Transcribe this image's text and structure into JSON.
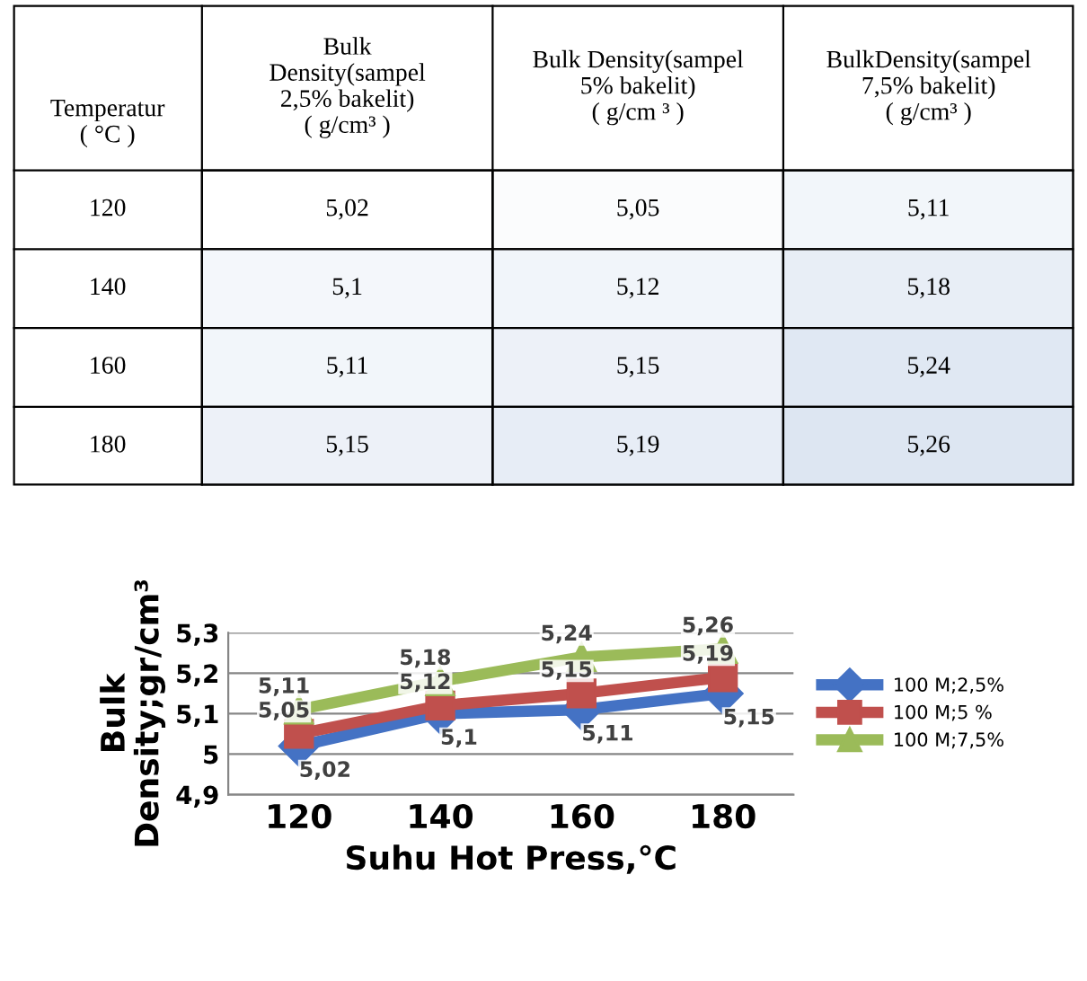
{
  "chart_data": [
    {
      "type": "heatmap",
      "ylabel": "Temperatur\n( °C )",
      "categories": [
        "Bulk\nDensity(sampel\n2,5% bakelit)\n( g/cm³ )",
        "Bulk Density(sampel\n5% bakelit)\n( g/cm ³ )",
        "BulkDensity(sampel\n7,5% bakelit)\n( g/cm³ )"
      ],
      "y_categories": [
        "120",
        "140",
        "160",
        "180"
      ],
      "cells": [
        [
          5.02,
          5.05,
          5.11
        ],
        [
          5.1,
          5.12,
          5.18
        ],
        [
          5.11,
          5.15,
          5.24
        ],
        [
          5.15,
          5.19,
          5.26
        ]
      ],
      "cell_labels": [
        [
          "5,02",
          "5,05",
          "5,11"
        ],
        [
          "5,1",
          "5,12",
          "5,18"
        ],
        [
          "5,11",
          "5,15",
          "5,24"
        ],
        [
          "5,15",
          "5,19",
          "5,26"
        ]
      ]
    },
    {
      "type": "line",
      "xlabel": "Suhu Hot Press,°C",
      "ylabel": "Bulk\nDensity;gr/cm³",
      "categories": [
        "120",
        "140",
        "160",
        "180"
      ],
      "ylim": [
        4.9,
        5.3
      ],
      "yticks": [
        {
          "value": 4.9,
          "label": "4,9"
        },
        {
          "value": 5,
          "label": "5"
        },
        {
          "value": 5.1,
          "label": "5,1"
        },
        {
          "value": 5.2,
          "label": "5,2"
        },
        {
          "value": 5.3,
          "label": "5,3"
        }
      ],
      "grid": "y",
      "legend": "right",
      "series": [
        {
          "name": "100 M;2,5%",
          "color": "#4472c4",
          "marker": "diamond",
          "values": [
            5.02,
            5.1,
            5.11,
            5.15
          ],
          "value_labels": [
            "5,02",
            "5,1",
            "5,11",
            "5,15"
          ]
        },
        {
          "name": "100 M;5 %",
          "color": "#c0504d",
          "marker": "square",
          "values": [
            5.05,
            5.12,
            5.15,
            5.19
          ],
          "value_labels": [
            "5,05",
            "5,12",
            "5,15",
            "5,19"
          ]
        },
        {
          "name": "100 M;7,5%",
          "color": "#9bbb59",
          "marker": "triangle",
          "values": [
            5.11,
            5.18,
            5.24,
            5.26
          ],
          "value_labels": [
            "5,11",
            "5,18",
            "5,24",
            "5,26"
          ]
        }
      ]
    }
  ]
}
